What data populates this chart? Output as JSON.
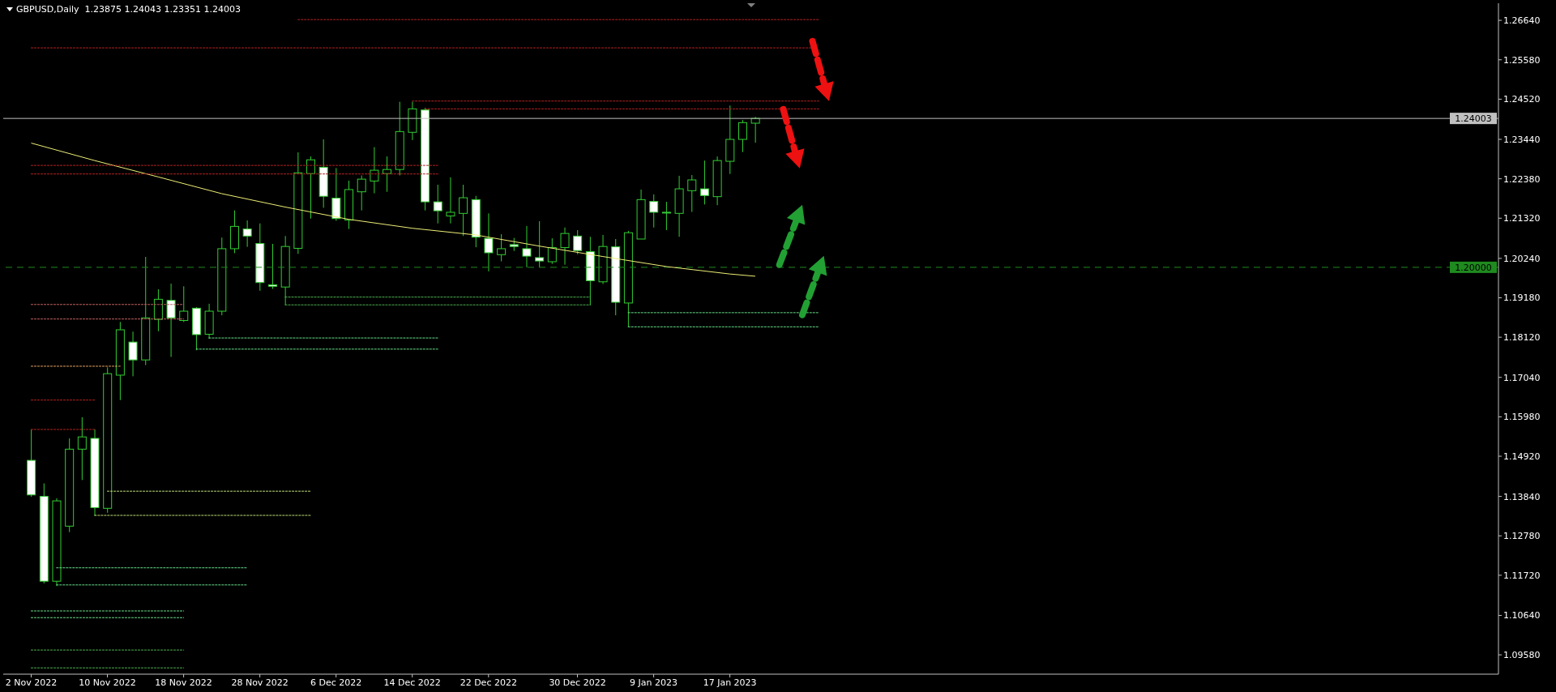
{
  "chart_data": {
    "type": "candlestick",
    "title": "GBPUSD,Daily  1.23875 1.24043 1.23351 1.24003",
    "color": "#32cd32",
    "categories": [
      "2 Nov 2022",
      null,
      null,
      null,
      null,
      null,
      "10 Nov 2022",
      null,
      null,
      null,
      null,
      null,
      "18 Nov 2022",
      null,
      null,
      null,
      null,
      null,
      "28 Nov 2022",
      null,
      null,
      null,
      null,
      null,
      "6 Dec 2022",
      null,
      null,
      null,
      null,
      null,
      "14 Dec 2022",
      null,
      null,
      null,
      null,
      null,
      "22 Dec 2022",
      null,
      null,
      null,
      null,
      null,
      null,
      "30 Dec 2022",
      null,
      null,
      null,
      null,
      null,
      "9 Jan 2023",
      null,
      null,
      null,
      null,
      null,
      "17 Jan 2023",
      null,
      null,
      null,
      null,
      null,
      null,
      null
    ],
    "ohlc": [
      [
        1.1481,
        1.1564,
        1.1383,
        1.1388
      ],
      [
        1.1384,
        1.1419,
        1.115,
        1.1156
      ],
      [
        1.1156,
        1.1379,
        1.1143,
        1.1372
      ],
      [
        1.1304,
        1.154,
        1.1288,
        1.1511
      ],
      [
        1.1511,
        1.1597,
        1.1428,
        1.1544
      ],
      [
        1.154,
        1.1564,
        1.1332,
        1.1354
      ],
      [
        1.1352,
        1.1731,
        1.134,
        1.1714
      ],
      [
        1.171,
        1.1853,
        1.1643,
        1.1832
      ],
      [
        1.1799,
        1.1827,
        1.1707,
        1.1751
      ],
      [
        1.1751,
        1.2028,
        1.1737,
        1.1864
      ],
      [
        1.186,
        1.1941,
        1.1828,
        1.1914
      ],
      [
        1.1911,
        1.1956,
        1.1759,
        1.1864
      ],
      [
        1.1857,
        1.1949,
        1.1853,
        1.1882
      ],
      [
        1.189,
        1.1893,
        1.1777,
        1.1819
      ],
      [
        1.182,
        1.1902,
        1.1808,
        1.1882
      ],
      [
        1.1882,
        1.208,
        1.1871,
        1.205
      ],
      [
        1.205,
        1.2153,
        1.2038,
        1.211
      ],
      [
        1.2103,
        1.2126,
        1.2055,
        1.2084
      ],
      [
        1.2064,
        1.2118,
        1.1937,
        1.1959
      ],
      [
        1.1953,
        1.2063,
        1.1942,
        1.1949
      ],
      [
        1.1947,
        1.2084,
        1.1899,
        1.2056
      ],
      [
        1.2051,
        1.2309,
        1.2036,
        1.2254
      ],
      [
        1.2252,
        1.2298,
        1.2131,
        1.2289
      ],
      [
        1.2269,
        1.2344,
        1.216,
        1.2191
      ],
      [
        1.2186,
        1.2267,
        1.2125,
        1.2131
      ],
      [
        1.2127,
        1.2233,
        1.2103,
        1.2209
      ],
      [
        1.2203,
        1.2247,
        1.2153,
        1.2237
      ],
      [
        1.2232,
        1.2323,
        1.2199,
        1.2261
      ],
      [
        1.2252,
        1.2298,
        1.2203,
        1.2263
      ],
      [
        1.2263,
        1.2445,
        1.2247,
        1.2365
      ],
      [
        1.2363,
        1.2445,
        1.2342,
        1.2426
      ],
      [
        1.2423,
        1.2429,
        1.2153,
        1.2176
      ],
      [
        1.2176,
        1.2222,
        1.2118,
        1.2152
      ],
      [
        1.2138,
        1.2242,
        1.2118,
        1.2148
      ],
      [
        1.2145,
        1.2222,
        1.2084,
        1.2187
      ],
      [
        1.2182,
        1.2192,
        1.2054,
        1.2081
      ],
      [
        1.2078,
        1.2145,
        1.1989,
        1.2039
      ],
      [
        1.2034,
        1.2089,
        1.2016,
        1.205
      ],
      [
        1.2061,
        1.2079,
        1.2044,
        1.2056
      ],
      [
        1.205,
        1.2111,
        1.2,
        1.203
      ],
      [
        1.2026,
        1.2124,
        1.2,
        1.2017
      ],
      [
        1.2015,
        1.2078,
        1.2009,
        1.2053
      ],
      [
        1.2053,
        1.2107,
        1.2007,
        1.2091
      ],
      [
        1.2084,
        1.21,
        1.2035,
        1.2045
      ],
      [
        1.2042,
        1.2082,
        1.1898,
        1.1964
      ],
      [
        1.1961,
        1.2087,
        1.1955,
        1.2056
      ],
      [
        1.2055,
        1.2076,
        1.1871,
        1.1906
      ],
      [
        1.1904,
        1.2098,
        1.184,
        1.2093
      ],
      [
        1.2076,
        1.2209,
        1.2076,
        1.2182
      ],
      [
        1.2177,
        1.2196,
        1.2107,
        1.2148
      ],
      [
        1.2148,
        1.2176,
        1.21,
        1.2148
      ],
      [
        1.2145,
        1.2246,
        1.2082,
        1.2211
      ],
      [
        1.2206,
        1.2248,
        1.2149,
        1.2235
      ],
      [
        1.2211,
        1.2287,
        1.2169,
        1.2193
      ],
      [
        1.219,
        1.2298,
        1.2167,
        1.2287
      ],
      [
        1.2285,
        1.2435,
        1.2251,
        1.2344
      ],
      [
        1.2344,
        1.2396,
        1.231,
        1.2389
      ],
      [
        1.23875,
        1.24043,
        1.23351,
        1.24003
      ],
      null,
      null,
      null,
      null,
      null
    ],
    "series": [
      {
        "type": "line",
        "color": "#eeee77",
        "line_style": "solid",
        "values": [
          1.2334,
          null,
          null,
          null,
          null,
          1.2287,
          null,
          null,
          null,
          null,
          1.2243,
          null,
          null,
          null,
          null,
          1.2198,
          null,
          null,
          null,
          null,
          1.2162,
          null,
          null,
          null,
          null,
          1.2129,
          null,
          null,
          null,
          null,
          1.2105,
          null,
          null,
          null,
          null,
          1.2087,
          null,
          null,
          null,
          null,
          1.2057,
          null,
          null,
          null,
          null,
          1.2029,
          null,
          null,
          null,
          null,
          1.2002,
          null,
          null,
          null,
          null,
          1.1982,
          null,
          1.1976,
          null,
          null,
          null,
          null,
          null
        ]
      },
      {
        "type": "line",
        "color": "#b22222",
        "line_style": "dotted",
        "values": [
          null,
          null,
          null,
          null,
          null,
          null,
          null,
          null,
          null,
          null,
          null,
          null,
          null,
          null,
          null,
          null,
          null,
          null,
          null,
          null,
          null,
          1.2666,
          1.2666,
          1.2666,
          1.2666,
          1.2666,
          1.2666,
          1.2666,
          1.2666,
          1.2666,
          1.2666,
          1.2666,
          1.2666,
          1.2666,
          1.2666,
          1.2666,
          1.2666,
          1.2666,
          1.2666,
          1.2666,
          1.2666,
          1.2666,
          1.2666,
          1.2666,
          1.2666,
          1.2666,
          1.2666,
          1.2666,
          1.2666,
          1.2666,
          1.2666,
          1.2666,
          1.2666,
          1.2666,
          1.2666,
          1.2666,
          1.2666,
          1.2666,
          1.2666,
          1.2666,
          1.2666,
          1.2666,
          1.2666
        ]
      },
      {
        "type": "line",
        "color": "#b22222",
        "line_style": "dotted",
        "values": [
          1.259,
          1.259,
          1.259,
          1.259,
          1.259,
          1.259,
          1.259,
          1.259,
          1.259,
          1.259,
          1.259,
          1.259,
          1.259,
          1.259,
          1.259,
          1.259,
          1.259,
          1.259,
          1.259,
          1.259,
          1.259,
          1.259,
          1.259,
          1.259,
          1.259,
          1.259,
          1.259,
          1.259,
          1.259,
          1.259,
          1.259,
          1.259,
          1.259,
          1.259,
          1.259,
          1.259,
          1.259,
          1.259,
          1.259,
          1.259,
          1.259,
          1.259,
          1.259,
          1.259,
          1.259,
          1.259,
          1.259,
          1.259,
          1.259,
          1.259,
          1.259,
          1.259,
          1.259,
          1.259,
          1.259,
          1.259,
          1.259,
          1.259,
          1.259,
          1.259,
          1.259,
          1.259,
          1.259
        ]
      },
      {
        "type": "line",
        "color": "#b22222",
        "line_style": "dotted",
        "values": [
          null,
          null,
          null,
          null,
          null,
          null,
          null,
          null,
          null,
          null,
          null,
          null,
          null,
          null,
          null,
          null,
          null,
          null,
          null,
          null,
          null,
          null,
          null,
          null,
          null,
          null,
          null,
          null,
          null,
          null,
          1.2447,
          1.2447,
          1.2447,
          1.2447,
          1.2447,
          1.2447,
          1.2447,
          1.2447,
          1.2447,
          1.2447,
          1.2447,
          1.2447,
          1.2447,
          1.2447,
          1.2447,
          1.2447,
          1.2447,
          1.2447,
          1.2447,
          1.2447,
          1.2447,
          1.2447,
          1.2447,
          1.2447,
          1.2447,
          1.2447,
          1.2447,
          1.2447,
          1.2447,
          1.2447,
          1.2447,
          1.2447,
          1.2447
        ]
      },
      {
        "type": "line",
        "color": "#b22222",
        "line_style": "dotted",
        "values": [
          null,
          null,
          null,
          null,
          null,
          null,
          null,
          null,
          null,
          null,
          null,
          null,
          null,
          null,
          null,
          null,
          null,
          null,
          null,
          null,
          null,
          null,
          null,
          null,
          null,
          null,
          null,
          null,
          null,
          null,
          null,
          1.2426,
          1.2426,
          1.2426,
          1.2426,
          1.2426,
          1.2426,
          1.2426,
          1.2426,
          1.2426,
          1.2426,
          1.2426,
          1.2426,
          1.2426,
          1.2426,
          1.2426,
          1.2426,
          1.2426,
          1.2426,
          1.2426,
          1.2426,
          1.2426,
          1.2426,
          1.2426,
          1.2426,
          1.2426,
          1.2426,
          1.2426,
          1.2426,
          1.2426,
          1.2426,
          1.2426,
          1.2426
        ]
      },
      {
        "type": "line",
        "color": "#b22222",
        "line_style": "dotted",
        "values": [
          1.2274,
          1.2274,
          1.2274,
          1.2274,
          1.2274,
          1.2274,
          1.2274,
          1.2274,
          1.2274,
          1.2274,
          1.2274,
          1.2274,
          1.2274,
          1.2274,
          1.2274,
          1.2274,
          1.2274,
          1.2274,
          1.2274,
          1.2274,
          1.2274,
          1.2274,
          1.2274,
          1.2274,
          1.2274,
          1.2274,
          1.2274,
          1.2274,
          1.2274,
          1.2274,
          1.2274,
          1.2274,
          1.2274,
          null,
          null,
          null,
          null,
          null,
          null,
          null,
          null,
          null,
          null,
          null,
          null,
          null,
          null,
          null,
          null,
          null,
          null,
          null,
          null,
          null,
          null,
          null,
          null,
          null,
          null,
          null,
          null,
          null,
          null
        ]
      },
      {
        "type": "line",
        "color": "#b22222",
        "line_style": "dotted",
        "values": [
          1.2251,
          1.2251,
          1.2251,
          1.2251,
          1.2251,
          1.2251,
          1.2251,
          1.2251,
          1.2251,
          1.2251,
          1.2251,
          1.2251,
          1.2251,
          1.2251,
          1.2251,
          1.2251,
          1.2251,
          1.2251,
          1.2251,
          1.2251,
          1.2251,
          1.2251,
          1.2251,
          1.2251,
          1.2251,
          1.2251,
          1.2251,
          1.2251,
          1.2251,
          1.2251,
          1.2251,
          1.2251,
          1.2251,
          null,
          null,
          null,
          null,
          null,
          null,
          null,
          null,
          null,
          null,
          null,
          null,
          null,
          null,
          null,
          null,
          null,
          null,
          null,
          null,
          null,
          null,
          null,
          null,
          null,
          null,
          null,
          null,
          null,
          null
        ]
      },
      {
        "type": "line",
        "color": "#c06060",
        "line_style": "dotted",
        "values": [
          1.19,
          1.19,
          1.19,
          1.19,
          1.19,
          1.19,
          1.19,
          1.19,
          1.19,
          1.19,
          1.19,
          1.19,
          1.19,
          null,
          null,
          null,
          null,
          null,
          null,
          null,
          null,
          null,
          null,
          null,
          null,
          null,
          null,
          null,
          null,
          null,
          null,
          null,
          null,
          null,
          null,
          null,
          null,
          null,
          null,
          null,
          null,
          null,
          null,
          null,
          null,
          null,
          null,
          null,
          null,
          null,
          null,
          null,
          null,
          null,
          null,
          null,
          null,
          null,
          null,
          null,
          null,
          null,
          null
        ]
      },
      {
        "type": "line",
        "color": "#c06060",
        "line_style": "dotted",
        "values": [
          1.1861,
          1.1861,
          1.1861,
          1.1861,
          1.1861,
          1.1861,
          1.1861,
          1.1861,
          1.1861,
          1.1861,
          1.1861,
          1.1861,
          1.1861,
          null,
          null,
          null,
          null,
          null,
          null,
          null,
          null,
          null,
          null,
          null,
          null,
          null,
          null,
          null,
          null,
          null,
          null,
          null,
          null,
          null,
          null,
          null,
          null,
          null,
          null,
          null,
          null,
          null,
          null,
          null,
          null,
          null,
          null,
          null,
          null,
          null,
          null,
          null,
          null,
          null,
          null,
          null,
          null,
          null,
          null,
          null,
          null,
          null,
          null
        ]
      },
      {
        "type": "line",
        "color": "#e0a060",
        "line_style": "dotted",
        "values": [
          1.1734,
          1.1734,
          1.1734,
          1.1734,
          1.1734,
          1.1734,
          1.1734,
          1.1734,
          null,
          null,
          null,
          null,
          null,
          null,
          null,
          null,
          null,
          null,
          null,
          null,
          null,
          null,
          null,
          null,
          null,
          null,
          null,
          null,
          null,
          null,
          null,
          null,
          null,
          null,
          null,
          null,
          null,
          null,
          null,
          null,
          null,
          null,
          null,
          null,
          null,
          null,
          null,
          null,
          null,
          null,
          null,
          null,
          null,
          null,
          null,
          null,
          null,
          null,
          null,
          null,
          null,
          null,
          null
        ]
      },
      {
        "type": "line",
        "color": "#b22222",
        "line_style": "dotted",
        "values": [
          1.1643,
          1.1643,
          1.1643,
          1.1643,
          1.1643,
          1.1643,
          null,
          null,
          null,
          null,
          null,
          null,
          null,
          null,
          null,
          null,
          null,
          null,
          null,
          null,
          null,
          null,
          null,
          null,
          null,
          null,
          null,
          null,
          null,
          null,
          null,
          null,
          null,
          null,
          null,
          null,
          null,
          null,
          null,
          null,
          null,
          null,
          null,
          null,
          null,
          null,
          null,
          null,
          null,
          null,
          null,
          null,
          null,
          null,
          null,
          null,
          null,
          null,
          null,
          null,
          null,
          null,
          null
        ]
      },
      {
        "type": "line",
        "color": "#b22222",
        "line_style": "dotted",
        "values": [
          1.1564,
          1.1564,
          1.1564,
          1.1564,
          1.1564,
          1.1564,
          null,
          null,
          null,
          null,
          null,
          null,
          null,
          null,
          null,
          null,
          null,
          null,
          null,
          null,
          null,
          null,
          null,
          null,
          null,
          null,
          null,
          null,
          null,
          null,
          null,
          null,
          null,
          null,
          null,
          null,
          null,
          null,
          null,
          null,
          null,
          null,
          null,
          null,
          null,
          null,
          null,
          null,
          null,
          null,
          null,
          null,
          null,
          null,
          null,
          null,
          null,
          null,
          null,
          null,
          null,
          null,
          null
        ]
      },
      {
        "type": "line",
        "color": "#4caf50",
        "line_style": "dotted",
        "values": [
          null,
          null,
          null,
          null,
          null,
          null,
          null,
          null,
          null,
          null,
          null,
          null,
          null,
          null,
          null,
          null,
          null,
          null,
          null,
          null,
          1.192,
          1.192,
          1.192,
          1.192,
          1.192,
          1.192,
          1.192,
          1.192,
          1.192,
          1.192,
          1.192,
          1.192,
          1.192,
          1.192,
          1.192,
          1.192,
          1.192,
          1.192,
          1.192,
          1.192,
          1.192,
          1.192,
          1.192,
          1.192,
          1.192,
          null,
          null,
          null,
          null,
          null,
          null,
          null,
          null,
          null,
          null,
          null,
          null,
          null,
          null,
          null,
          null,
          null,
          null
        ]
      },
      {
        "type": "line",
        "color": "#4caf50",
        "line_style": "dotted",
        "values": [
          null,
          null,
          null,
          null,
          null,
          null,
          null,
          null,
          null,
          null,
          null,
          null,
          null,
          null,
          null,
          null,
          null,
          null,
          null,
          null,
          1.1899,
          1.1899,
          1.1899,
          1.1899,
          1.1899,
          1.1899,
          1.1899,
          1.1899,
          1.1899,
          1.1899,
          1.1899,
          1.1899,
          1.1899,
          1.1899,
          1.1899,
          1.1899,
          1.1899,
          1.1899,
          1.1899,
          1.1899,
          1.1899,
          1.1899,
          1.1899,
          1.1899,
          1.1899,
          null,
          null,
          null,
          null,
          null,
          null,
          null,
          null,
          null,
          null,
          null,
          null,
          null,
          null,
          null,
          null,
          null,
          null
        ]
      },
      {
        "type": "line",
        "color": "#66dd88",
        "line_style": "dotted",
        "values": [
          null,
          null,
          null,
          null,
          null,
          null,
          null,
          null,
          null,
          null,
          null,
          null,
          null,
          null,
          null,
          null,
          null,
          null,
          null,
          null,
          null,
          null,
          null,
          null,
          null,
          null,
          null,
          null,
          null,
          null,
          null,
          null,
          null,
          null,
          null,
          null,
          null,
          null,
          null,
          null,
          null,
          null,
          null,
          null,
          null,
          null,
          null,
          1.1878,
          1.1878,
          1.1878,
          1.1878,
          1.1878,
          1.1878,
          1.1878,
          1.1878,
          1.1878,
          1.1878,
          1.1878,
          1.1878,
          1.1878,
          1.1878,
          1.1878,
          1.1878
        ]
      },
      {
        "type": "line",
        "color": "#66dd88",
        "line_style": "dotted",
        "values": [
          null,
          null,
          null,
          null,
          null,
          null,
          null,
          null,
          null,
          null,
          null,
          null,
          null,
          null,
          null,
          null,
          null,
          null,
          null,
          null,
          null,
          null,
          null,
          null,
          null,
          null,
          null,
          null,
          null,
          null,
          null,
          null,
          null,
          null,
          null,
          null,
          null,
          null,
          null,
          null,
          null,
          null,
          null,
          null,
          null,
          null,
          null,
          1.184,
          1.184,
          1.184,
          1.184,
          1.184,
          1.184,
          1.184,
          1.184,
          1.184,
          1.184,
          1.184,
          1.184,
          1.184,
          1.184,
          1.184,
          1.184
        ]
      },
      {
        "type": "line",
        "color": "#66dd88",
        "line_style": "dotted",
        "values": [
          null,
          null,
          null,
          null,
          null,
          null,
          null,
          null,
          null,
          null,
          null,
          null,
          null,
          null,
          1.181,
          1.181,
          1.181,
          1.181,
          1.181,
          1.181,
          1.181,
          1.181,
          1.181,
          1.181,
          1.181,
          1.181,
          1.181,
          1.181,
          1.181,
          1.181,
          1.181,
          1.181,
          1.181,
          null,
          null,
          null,
          null,
          null,
          null,
          null,
          null,
          null,
          null,
          null,
          null,
          null,
          null,
          null,
          null,
          null,
          null,
          null,
          null,
          null,
          null,
          null,
          null,
          null,
          null,
          null,
          null,
          null,
          null
        ]
      },
      {
        "type": "line",
        "color": "#66dd88",
        "line_style": "dotted",
        "values": [
          null,
          null,
          null,
          null,
          null,
          null,
          null,
          null,
          null,
          null,
          null,
          null,
          null,
          1.178,
          1.178,
          1.178,
          1.178,
          1.178,
          1.178,
          1.178,
          1.178,
          1.178,
          1.178,
          1.178,
          1.178,
          1.178,
          1.178,
          1.178,
          1.178,
          1.178,
          1.178,
          1.178,
          1.178,
          null,
          null,
          null,
          null,
          null,
          null,
          null,
          null,
          null,
          null,
          null,
          null,
          null,
          null,
          null,
          null,
          null,
          null,
          null,
          null,
          null,
          null,
          null,
          null,
          null,
          null,
          null,
          null,
          null,
          null
        ]
      },
      {
        "type": "line",
        "color": "#bbdd77",
        "line_style": "dotted",
        "values": [
          null,
          null,
          null,
          null,
          null,
          null,
          1.1398,
          1.1398,
          1.1398,
          1.1398,
          1.1398,
          1.1398,
          1.1398,
          1.1398,
          1.1398,
          1.1398,
          1.1398,
          1.1398,
          1.1398,
          1.1398,
          1.1398,
          1.1398,
          1.1398,
          null,
          null,
          null,
          null,
          null,
          null,
          null,
          null,
          null,
          null,
          null,
          null,
          null,
          null,
          null,
          null,
          null,
          null,
          null,
          null,
          null,
          null,
          null,
          null,
          null,
          null,
          null,
          null,
          null,
          null,
          null,
          null,
          null,
          null,
          null,
          null,
          null,
          null,
          null,
          null
        ]
      },
      {
        "type": "line",
        "color": "#bbdd77",
        "line_style": "dotted",
        "values": [
          null,
          null,
          null,
          null,
          null,
          1.1333,
          1.1333,
          1.1333,
          1.1333,
          1.1333,
          1.1333,
          1.1333,
          1.1333,
          1.1333,
          1.1333,
          1.1333,
          1.1333,
          1.1333,
          1.1333,
          1.1333,
          1.1333,
          1.1333,
          1.1333,
          null,
          null,
          null,
          null,
          null,
          null,
          null,
          null,
          null,
          null,
          null,
          null,
          null,
          null,
          null,
          null,
          null,
          null,
          null,
          null,
          null,
          null,
          null,
          null,
          null,
          null,
          null,
          null,
          null,
          null,
          null,
          null,
          null,
          null,
          null,
          null,
          null,
          null,
          null,
          null
        ]
      },
      {
        "type": "line",
        "color": "#66dd88",
        "line_style": "dotted",
        "values": [
          null,
          null,
          1.1192,
          1.1192,
          1.1192,
          1.1192,
          1.1192,
          1.1192,
          1.1192,
          1.1192,
          1.1192,
          1.1192,
          1.1192,
          1.1192,
          1.1192,
          1.1192,
          1.1192,
          1.1192,
          null,
          null,
          null,
          null,
          null,
          null,
          null,
          null,
          null,
          null,
          null,
          null,
          null,
          null,
          null,
          null,
          null,
          null,
          null,
          null,
          null,
          null,
          null,
          null,
          null,
          null,
          null,
          null,
          null,
          null,
          null,
          null,
          null,
          null,
          null,
          null,
          null,
          null,
          null,
          null,
          null,
          null,
          null,
          null,
          null
        ]
      },
      {
        "type": "line",
        "color": "#66dd88",
        "line_style": "dotted",
        "values": [
          null,
          null,
          1.1146,
          1.1146,
          1.1146,
          1.1146,
          1.1146,
          1.1146,
          1.1146,
          1.1146,
          1.1146,
          1.1146,
          1.1146,
          1.1146,
          1.1146,
          1.1146,
          1.1146,
          1.1146,
          null,
          null,
          null,
          null,
          null,
          null,
          null,
          null,
          null,
          null,
          null,
          null,
          null,
          null,
          null,
          null,
          null,
          null,
          null,
          null,
          null,
          null,
          null,
          null,
          null,
          null,
          null,
          null,
          null,
          null,
          null,
          null,
          null,
          null,
          null,
          null,
          null,
          null,
          null,
          null,
          null,
          null,
          null,
          null,
          null
        ]
      },
      {
        "type": "line",
        "color": "#66dd88",
        "line_style": "dotted",
        "values": [
          1.1076,
          1.1076,
          1.1076,
          1.1076,
          1.1076,
          1.1076,
          1.1076,
          1.1076,
          1.1076,
          1.1076,
          1.1076,
          1.1076,
          1.1076,
          null,
          null,
          null,
          null,
          null,
          null,
          null,
          null,
          null,
          null,
          null,
          null,
          null,
          null,
          null,
          null,
          null,
          null,
          null,
          null,
          null,
          null,
          null,
          null,
          null,
          null,
          null,
          null,
          null,
          null,
          null,
          null,
          null,
          null,
          null,
          null,
          null,
          null,
          null,
          null,
          null,
          null,
          null,
          null,
          null,
          null,
          null,
          null,
          null,
          null
        ]
      },
      {
        "type": "line",
        "color": "#66dd88",
        "line_style": "dotted",
        "values": [
          1.1058,
          1.1058,
          1.1058,
          1.1058,
          1.1058,
          1.1058,
          1.1058,
          1.1058,
          1.1058,
          1.1058,
          1.1058,
          1.1058,
          1.1058,
          null,
          null,
          null,
          null,
          null,
          null,
          null,
          null,
          null,
          null,
          null,
          null,
          null,
          null,
          null,
          null,
          null,
          null,
          null,
          null,
          null,
          null,
          null,
          null,
          null,
          null,
          null,
          null,
          null,
          null,
          null,
          null,
          null,
          null,
          null,
          null,
          null,
          null,
          null,
          null,
          null,
          null,
          null,
          null,
          null,
          null,
          null,
          null,
          null,
          null
        ]
      },
      {
        "type": "line",
        "color": "#4caf50",
        "line_style": "dotted",
        "values": [
          1.0971,
          1.0971,
          1.0971,
          1.0971,
          1.0971,
          1.0971,
          1.0971,
          1.0971,
          1.0971,
          1.0971,
          1.0971,
          1.0971,
          1.0971,
          null,
          null,
          null,
          null,
          null,
          null,
          null,
          null,
          null,
          null,
          null,
          null,
          null,
          null,
          null,
          null,
          null,
          null,
          null,
          null,
          null,
          null,
          null,
          null,
          null,
          null,
          null,
          null,
          null,
          null,
          null,
          null,
          null,
          null,
          null,
          null,
          null,
          null,
          null,
          null,
          null,
          null,
          null,
          null,
          null,
          null,
          null,
          null,
          null,
          null
        ]
      },
      {
        "type": "line",
        "color": "#4caf50",
        "line_style": "dotted",
        "values": [
          1.0923,
          1.0923,
          1.0923,
          1.0923,
          1.0923,
          1.0923,
          1.0923,
          1.0923,
          1.0923,
          1.0923,
          1.0923,
          1.0923,
          1.0923,
          null,
          null,
          null,
          null,
          null,
          null,
          null,
          null,
          null,
          null,
          null,
          null,
          null,
          null,
          null,
          null,
          null,
          null,
          null,
          null,
          null,
          null,
          null,
          null,
          null,
          null,
          null,
          null,
          null,
          null,
          null,
          null,
          null,
          null,
          null,
          null,
          null,
          null,
          null,
          null,
          null,
          null,
          null,
          null,
          null,
          null,
          null,
          null,
          null,
          null
        ]
      }
    ],
    "ref_lines": [
      {
        "axis": "y",
        "value": 1.24003,
        "label": "1.24003",
        "color": "#c0c0c0",
        "line_style": "solid"
      },
      {
        "axis": "y",
        "value": 1.2,
        "label": "1.20000",
        "color": "#1f8a1f",
        "line_style": "dashed"
      }
    ],
    "ylim": [
      1.0906,
      1.271
    ],
    "yticks": [
      {
        "value": 1.2664,
        "label": "1.26640"
      },
      {
        "value": 1.2558,
        "label": "1.25580"
      },
      {
        "value": 1.2452,
        "label": "1.24520"
      },
      {
        "value": 1.2344,
        "label": "1.23440"
      },
      {
        "value": 1.2238,
        "label": "1.22380"
      },
      {
        "value": 1.2132,
        "label": "1.21320"
      },
      {
        "value": 1.2024,
        "label": "1.20240"
      },
      {
        "value": 1.1918,
        "label": "1.19180"
      },
      {
        "value": 1.1812,
        "label": "1.18120"
      },
      {
        "value": 1.1704,
        "label": "1.17040"
      },
      {
        "value": 1.1598,
        "label": "1.15980"
      },
      {
        "value": 1.1492,
        "label": "1.14920"
      },
      {
        "value": 1.1384,
        "label": "1.13840"
      },
      {
        "value": 1.1278,
        "label": "1.12780"
      },
      {
        "value": 1.1172,
        "label": "1.11720"
      },
      {
        "value": 1.1064,
        "label": "1.10640"
      },
      {
        "value": 1.0958,
        "label": "1.09580"
      }
    ]
  }
}
